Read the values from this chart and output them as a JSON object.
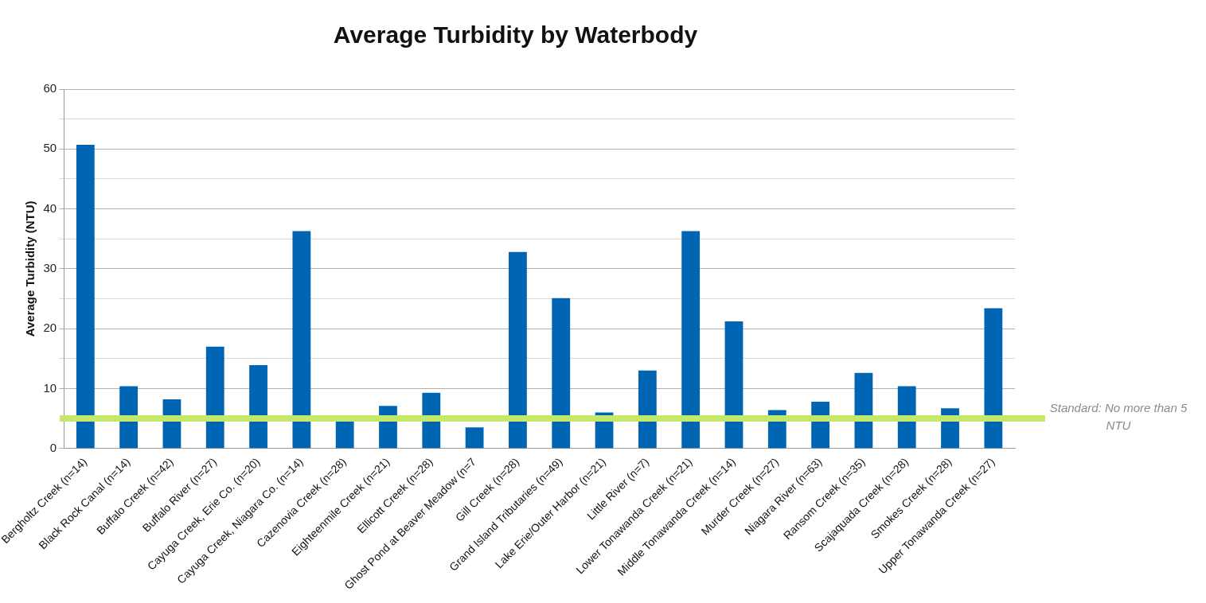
{
  "chart_data": {
    "type": "bar",
    "title": "Average Turbidity by Waterbody",
    "ylabel": "Average Turbidity (NTU)",
    "categories": [
      "Bergholtz Creek (n=14)",
      "Black Rock Canal (n=14)",
      "Buffalo Creek (n=42)",
      "Buffalo River (n=27)",
      "Cayuga Creek, Erie Co. (n=20)",
      "Cayuga Creek, Niagara Co. (n=14)",
      "Cazenovia Creek (n=28)",
      "Eighteenmile Creek (n=21)",
      "Ellicott Creek (n=28)",
      "Ghost Pond at Beaver Meadow (n=7",
      "Gill Creek (n=28)",
      "Grand Island Tributaries (n=49)",
      "Lake Erie/Outer Harbor (n=21)",
      "Little River (n=7)",
      "Lower Tonawanda Creek (n=21)",
      "Middle Tonawanda Creek (n=14)",
      "Murder Creek (n=27)",
      "Niagara River (n=63)",
      "Ransom Creek (n=35)",
      "Scajaquada Creek (n=28)",
      "Smokes Creek (n=28)",
      "Upper Tonawanda Creek (n=27)"
    ],
    "values": [
      50.7,
      10.4,
      8.2,
      17.0,
      13.9,
      36.3,
      4.8,
      7.1,
      9.3,
      3.5,
      32.8,
      25.1,
      6.0,
      13.0,
      36.3,
      21.2,
      6.4,
      7.8,
      12.6,
      10.4,
      6.7,
      23.4
    ],
    "color": "#0066b3",
    "ylim": [
      0,
      60
    ],
    "yticks": [
      0,
      {
        "value": 5,
        "label": null
      },
      10,
      {
        "value": 15,
        "label": null
      },
      20,
      {
        "value": 25,
        "label": null
      },
      30,
      {
        "value": 35,
        "label": null
      },
      40,
      {
        "value": 45,
        "label": null
      },
      50,
      {
        "value": 55,
        "label": null
      },
      60
    ],
    "grid": "y",
    "ref_lines": [
      {
        "axis": "y",
        "value": 5,
        "label": "Standard: No more than 5 NTU",
        "color": "#c3e86a"
      }
    ]
  }
}
